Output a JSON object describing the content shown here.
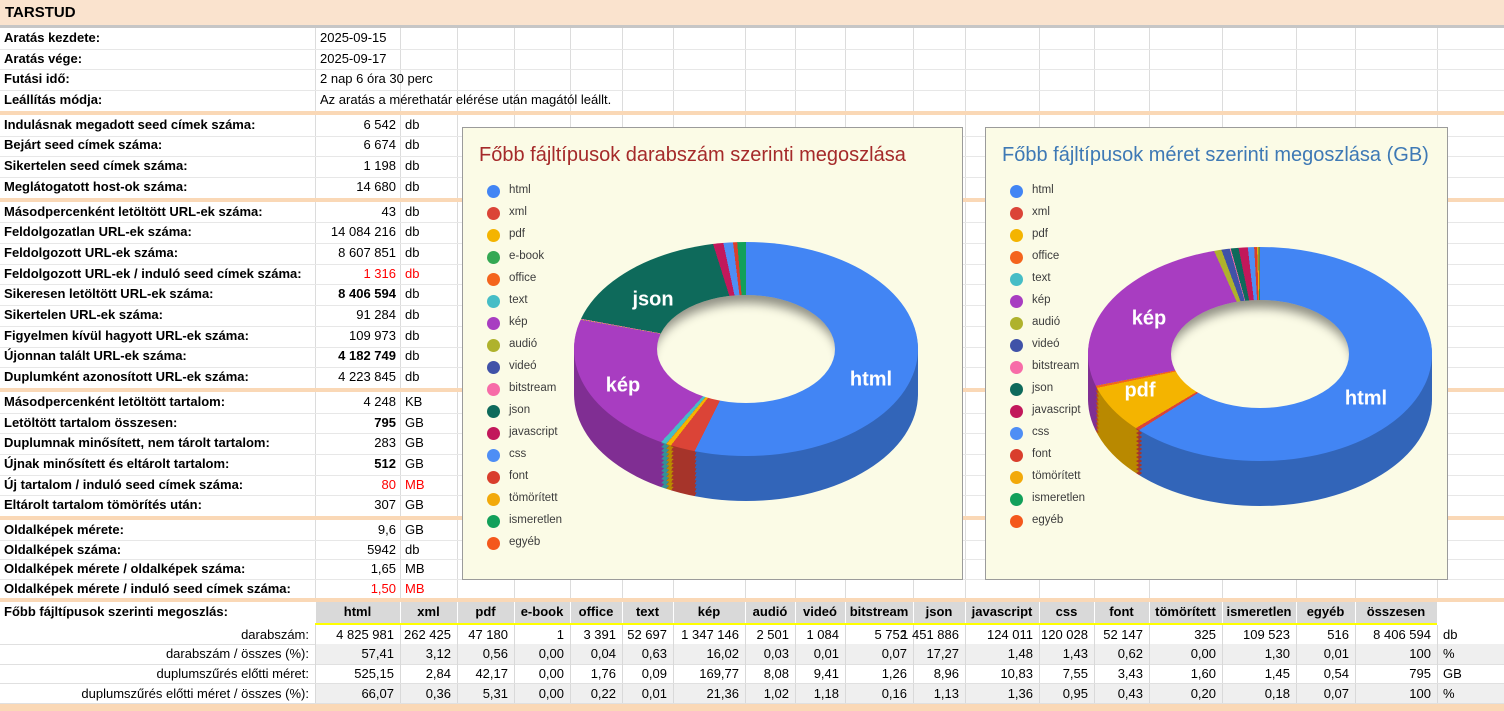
{
  "header": {
    "title": "TARSTUD"
  },
  "info_rows": [
    {
      "label": "Aratás kezdete:",
      "value": "2025-09-15"
    },
    {
      "label": "Aratás vége:",
      "value": "2025-09-17"
    },
    {
      "label": "Futási idő:",
      "value": "2 nap 6 óra 30 perc"
    },
    {
      "label": "Leállítás módja:",
      "value": "Az aratás a mérethatár elérése után magától leállt."
    }
  ],
  "stat_groups": [
    {
      "rows": [
        {
          "label": "Indulásnak megadott seed címek száma:",
          "value": "6 542",
          "unit": "db"
        },
        {
          "label": "Bejárt seed címek száma:",
          "value": "6 674",
          "unit": "db"
        },
        {
          "label": "Sikertelen seed címek száma:",
          "value": "1 198",
          "unit": "db"
        },
        {
          "label": "Meglátogatott host-ok száma:",
          "value": "14 680",
          "unit": "db"
        }
      ]
    },
    {
      "rows": [
        {
          "label": "Másodpercenként letöltött URL-ek száma:",
          "value": "43",
          "unit": "db"
        },
        {
          "label": "Feldolgozatlan URL-ek száma:",
          "value": "14 084 216",
          "unit": "db"
        },
        {
          "label": "Feldolgozott URL-ek száma:",
          "value": "8 607 851",
          "unit": "db"
        },
        {
          "label": "Feldolgozott URL-ek / induló seed címek száma:",
          "value": "1 316",
          "unit": "db",
          "value_style": "red"
        },
        {
          "label": "Sikeresen letöltött URL-ek száma:",
          "value": "8 406 594",
          "unit": "db",
          "value_style": "bold"
        },
        {
          "label": "Sikertelen URL-ek száma:",
          "value": "91 284",
          "unit": "db"
        },
        {
          "label": "Figyelmen kívül hagyott URL-ek száma:",
          "value": "109 973",
          "unit": "db"
        },
        {
          "label": "Újonnan talált URL-ek száma:",
          "value": "4 182 749",
          "unit": "db",
          "value_style": "bold"
        },
        {
          "label": "Duplumként azonosított URL-ek száma:",
          "value": "4 223 845",
          "unit": "db"
        }
      ]
    },
    {
      "rows": [
        {
          "label": "Másodpercenként letöltött tartalom:",
          "value": "4 248",
          "unit": "KB"
        },
        {
          "label": "Letöltött tartalom összesen:",
          "value": "795",
          "unit": "GB",
          "value_style": "bold"
        },
        {
          "label": "Duplumnak minősített, nem tárolt tartalom:",
          "value": "283",
          "unit": "GB"
        },
        {
          "label": "Újnak minősített és eltárolt tartalom:",
          "value": "512",
          "unit": "GB",
          "value_style": "bold"
        },
        {
          "label": "Új tartalom / induló seed címek száma:",
          "value": "80",
          "unit": "MB",
          "value_style": "red"
        },
        {
          "label": "Eltárolt tartalom tömörítés után:",
          "value": "307",
          "unit": "GB"
        }
      ]
    },
    {
      "rows": [
        {
          "label": "Oldalképek mérete:",
          "value": "9,6",
          "unit": "GB"
        },
        {
          "label": "Oldalképek száma:",
          "value": "5942",
          "unit": "db"
        },
        {
          "label": "Oldalképek mérete  / oldalképek száma:",
          "value": "1,65",
          "unit": "MB"
        },
        {
          "label": "Oldalképek mérete  / induló seed címek száma:",
          "value": "1,50",
          "unit": "MB",
          "value_style": "red"
        }
      ]
    }
  ],
  "palette": {
    "html": "#4285f4",
    "xml": "#db4437",
    "pdf": "#f4b400",
    "e-book": "#34a853",
    "office": "#f4641d",
    "text": "#46bdc6",
    "kép": "#a83dc1",
    "audió": "#afb22c",
    "videó": "#4052a8",
    "bitstream": "#f76ca8",
    "json": "#0e6a5b",
    "javascript": "#c2185b",
    "css": "#4e8ef5",
    "font": "#d93e2c",
    "tömörített": "#f2a90a",
    "ismeretlen": "#12a05a",
    "egyéb": "#f4581c"
  },
  "chart_data": [
    {
      "type": "pie",
      "title": "Főbb fájltípusok darabszám szerinti megoszlása",
      "title_color": "#a52a2a",
      "legend_position": "left",
      "donut": true,
      "series": [
        {
          "name": "html",
          "value": 57.41
        },
        {
          "name": "xml",
          "value": 3.12
        },
        {
          "name": "pdf",
          "value": 0.56
        },
        {
          "name": "e-book",
          "value": 0.0
        },
        {
          "name": "office",
          "value": 0.04
        },
        {
          "name": "text",
          "value": 0.63
        },
        {
          "name": "kép",
          "value": 16.02
        },
        {
          "name": "audió",
          "value": 0.03
        },
        {
          "name": "videó",
          "value": 0.01
        },
        {
          "name": "bitstream",
          "value": 0.07
        },
        {
          "name": "json",
          "value": 17.27
        },
        {
          "name": "javascript",
          "value": 1.48
        },
        {
          "name": "css",
          "value": 1.43
        },
        {
          "name": "font",
          "value": 0.62
        },
        {
          "name": "tömörített",
          "value": 0.0
        },
        {
          "name": "ismeretlen",
          "value": 1.3
        },
        {
          "name": "egyéb",
          "value": 0.01
        }
      ],
      "slice_labels": [
        "html",
        "kép",
        "json"
      ]
    },
    {
      "type": "pie",
      "title": "Főbb fájltípusok méret szerinti megoszlása (GB)",
      "title_color": "#3e79b5",
      "legend_position": "left",
      "donut": true,
      "series": [
        {
          "name": "html",
          "value": 66.07
        },
        {
          "name": "xml",
          "value": 0.36
        },
        {
          "name": "pdf",
          "value": 5.31
        },
        {
          "name": "office",
          "value": 0.22
        },
        {
          "name": "text",
          "value": 0.01
        },
        {
          "name": "kép",
          "value": 21.36
        },
        {
          "name": "audió",
          "value": 1.02
        },
        {
          "name": "videó",
          "value": 1.18
        },
        {
          "name": "bitstream",
          "value": 0.16
        },
        {
          "name": "json",
          "value": 1.13
        },
        {
          "name": "javascript",
          "value": 1.36
        },
        {
          "name": "css",
          "value": 0.95
        },
        {
          "name": "font",
          "value": 0.43
        },
        {
          "name": "tömörített",
          "value": 0.2
        },
        {
          "name": "ismeretlen",
          "value": 0.18
        },
        {
          "name": "egyéb",
          "value": 0.07
        }
      ],
      "slice_labels": [
        "html",
        "kép",
        "pdf"
      ]
    }
  ],
  "file_table": {
    "corner_label": "Főbb fájltípusok szerinti megoszlás:",
    "columns": [
      "html",
      "xml",
      "pdf",
      "e-book",
      "office",
      "text",
      "kép",
      "audió",
      "videó",
      "bitstream",
      "json",
      "javascript",
      "css",
      "font",
      "tömörített",
      "ismeretlen",
      "egyéb",
      "összesen"
    ],
    "rows": [
      {
        "label": "darabszám:",
        "values": [
          "4 825 981",
          "262 425",
          "47 180",
          "1",
          "3 391",
          "52 697",
          "1 347 146",
          "2 501",
          "1 084",
          "5 752",
          "1 451 886",
          "124 011",
          "120 028",
          "52 147",
          "325",
          "109 523",
          "516",
          "8 406 594"
        ],
        "unit": "db"
      },
      {
        "label": "darabszám / összes (%):",
        "values": [
          "57,41",
          "3,12",
          "0,56",
          "0,00",
          "0,04",
          "0,63",
          "16,02",
          "0,03",
          "0,01",
          "0,07",
          "17,27",
          "1,48",
          "1,43",
          "0,62",
          "0,00",
          "1,30",
          "0,01",
          "100"
        ],
        "unit": "%"
      },
      {
        "label": "duplumszűrés előtti méret:",
        "values": [
          "525,15",
          "2,84",
          "42,17",
          "0,00",
          "1,76",
          "0,09",
          "169,77",
          "8,08",
          "9,41",
          "1,26",
          "8,96",
          "10,83",
          "7,55",
          "3,43",
          "1,60",
          "1,45",
          "0,54",
          "795"
        ],
        "unit": "GB"
      },
      {
        "label": "duplumszűrés előtti méret / összes (%):",
        "values": [
          "66,07",
          "0,36",
          "5,31",
          "0,00",
          "0,22",
          "0,01",
          "21,36",
          "1,02",
          "1,18",
          "0,16",
          "1,13",
          "1,36",
          "0,95",
          "0,43",
          "0,20",
          "0,18",
          "0,07",
          "100"
        ],
        "unit": "%"
      }
    ]
  }
}
